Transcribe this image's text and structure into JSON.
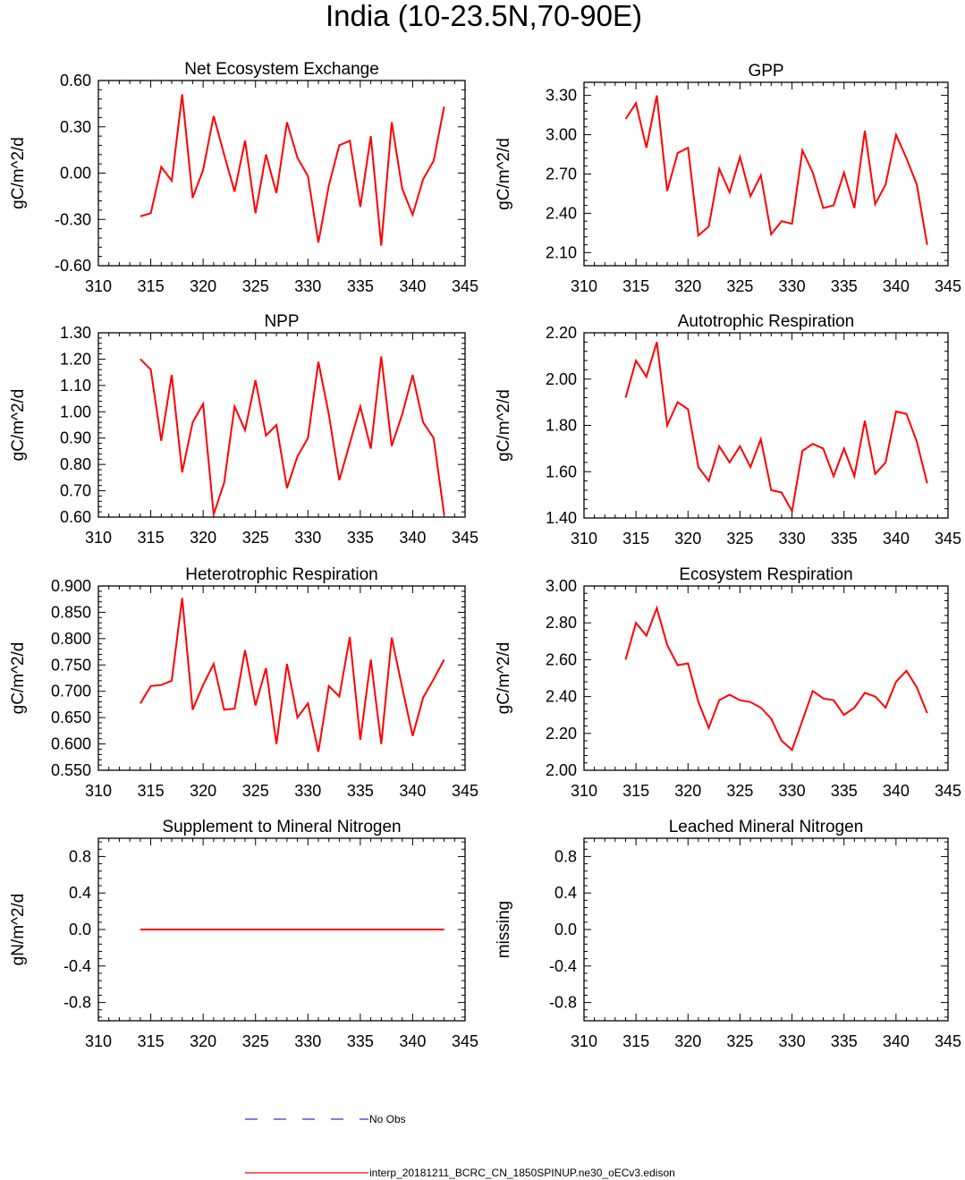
{
  "title": "India (10-23.5N,70-90E)",
  "colors": {
    "model": "#ff0000",
    "obs": "#3333cc",
    "axis": "#000000"
  },
  "legend": {
    "obs_label": "No Obs",
    "model_label": "interp_20181211_BCRC_CN_1850SPINUP.ne30_oECv3.edison"
  },
  "chart_data": [
    {
      "type": "line",
      "title": "Net Ecosystem Exchange",
      "ylabel": "gC/m^2/d",
      "xlim": [
        310,
        345
      ],
      "xticks": [
        "310",
        "315",
        "320",
        "325",
        "330",
        "335",
        "340",
        "345"
      ],
      "ylim": [
        -0.6,
        0.6
      ],
      "yticks": [
        "-0.60",
        "-0.30",
        "0.00",
        "0.30",
        "0.60"
      ],
      "x": [
        314,
        315,
        316,
        317,
        318,
        319,
        320,
        321,
        322,
        323,
        324,
        325,
        326,
        327,
        328,
        329,
        330,
        331,
        332,
        333,
        334,
        335,
        336,
        337,
        338,
        339,
        340,
        341,
        342,
        343
      ],
      "series": [
        {
          "name": "model",
          "values": [
            -0.28,
            -0.26,
            0.04,
            -0.05,
            0.51,
            -0.16,
            0.02,
            0.37,
            0.12,
            -0.12,
            0.21,
            -0.26,
            0.12,
            -0.13,
            0.33,
            0.1,
            -0.02,
            -0.45,
            -0.08,
            0.18,
            0.21,
            -0.22,
            0.24,
            -0.47,
            0.33,
            -0.1,
            -0.27,
            -0.04,
            0.08,
            0.43
          ]
        }
      ]
    },
    {
      "type": "line",
      "title": "GPP",
      "ylabel": "gC/m^2/d",
      "xlim": [
        310,
        345
      ],
      "xticks": [
        "310",
        "315",
        "320",
        "325",
        "330",
        "335",
        "340",
        "345"
      ],
      "ylim": [
        2.0,
        3.4
      ],
      "yticks": [
        "2.10",
        "2.40",
        "2.70",
        "3.00",
        "3.30"
      ],
      "x": [
        314,
        315,
        316,
        317,
        318,
        319,
        320,
        321,
        322,
        323,
        324,
        325,
        326,
        327,
        328,
        329,
        330,
        331,
        332,
        333,
        334,
        335,
        336,
        337,
        338,
        339,
        340,
        341,
        342,
        343
      ],
      "series": [
        {
          "name": "model",
          "values": [
            3.12,
            3.24,
            2.9,
            3.3,
            2.57,
            2.86,
            2.9,
            2.23,
            2.3,
            2.74,
            2.56,
            2.83,
            2.53,
            2.69,
            2.24,
            2.34,
            2.32,
            2.88,
            2.71,
            2.44,
            2.46,
            2.71,
            2.44,
            3.03,
            2.47,
            2.62,
            3.0,
            2.82,
            2.62,
            2.16
          ]
        }
      ]
    },
    {
      "type": "line",
      "title": "NPP",
      "ylabel": "gC/m^2/d",
      "xlim": [
        310,
        345
      ],
      "xticks": [
        "310",
        "315",
        "320",
        "325",
        "330",
        "335",
        "340",
        "345"
      ],
      "ylim": [
        0.6,
        1.3
      ],
      "yticks": [
        "0.60",
        "0.70",
        "0.80",
        "0.90",
        "1.00",
        "1.10",
        "1.20",
        "1.30"
      ],
      "x": [
        314,
        315,
        316,
        317,
        318,
        319,
        320,
        321,
        322,
        323,
        324,
        325,
        326,
        327,
        328,
        329,
        330,
        331,
        332,
        333,
        334,
        335,
        336,
        337,
        338,
        339,
        340,
        341,
        342,
        343
      ],
      "series": [
        {
          "name": "model",
          "values": [
            1.2,
            1.16,
            0.89,
            1.14,
            0.77,
            0.96,
            1.03,
            0.61,
            0.73,
            1.02,
            0.93,
            1.12,
            0.91,
            0.95,
            0.71,
            0.83,
            0.9,
            1.19,
            0.99,
            0.74,
            0.88,
            1.02,
            0.86,
            1.21,
            0.87,
            0.99,
            1.14,
            0.96,
            0.9,
            0.61
          ]
        }
      ]
    },
    {
      "type": "line",
      "title": "Autotrophic Respiration",
      "ylabel": "gC/m^2/d",
      "xlim": [
        310,
        345
      ],
      "xticks": [
        "310",
        "315",
        "320",
        "325",
        "330",
        "335",
        "340",
        "345"
      ],
      "ylim": [
        1.4,
        2.2
      ],
      "yticks": [
        "1.40",
        "1.60",
        "1.80",
        "2.00",
        "2.20"
      ],
      "x": [
        314,
        315,
        316,
        317,
        318,
        319,
        320,
        321,
        322,
        323,
        324,
        325,
        326,
        327,
        328,
        329,
        330,
        331,
        332,
        333,
        334,
        335,
        336,
        337,
        338,
        339,
        340,
        341,
        342,
        343
      ],
      "series": [
        {
          "name": "model",
          "values": [
            1.92,
            2.08,
            2.01,
            2.16,
            1.8,
            1.9,
            1.87,
            1.62,
            1.56,
            1.71,
            1.64,
            1.71,
            1.62,
            1.74,
            1.52,
            1.51,
            1.43,
            1.69,
            1.72,
            1.7,
            1.58,
            1.7,
            1.58,
            1.82,
            1.59,
            1.64,
            1.86,
            1.85,
            1.73,
            1.55
          ]
        }
      ]
    },
    {
      "type": "line",
      "title": "Heterotrophic Respiration",
      "ylabel": "gC/m^2/d",
      "xlim": [
        310,
        345
      ],
      "xticks": [
        "310",
        "315",
        "320",
        "325",
        "330",
        "335",
        "340",
        "345"
      ],
      "ylim": [
        0.55,
        0.9
      ],
      "yticks": [
        "0.550",
        "0.600",
        "0.650",
        "0.700",
        "0.750",
        "0.800",
        "0.850",
        "0.900"
      ],
      "x": [
        314,
        315,
        316,
        317,
        318,
        319,
        320,
        321,
        322,
        323,
        324,
        325,
        326,
        327,
        328,
        329,
        330,
        331,
        332,
        333,
        334,
        335,
        336,
        337,
        338,
        339,
        340,
        341,
        342,
        343
      ],
      "series": [
        {
          "name": "model",
          "values": [
            0.677,
            0.71,
            0.712,
            0.72,
            0.877,
            0.665,
            0.712,
            0.752,
            0.665,
            0.667,
            0.778,
            0.673,
            0.744,
            0.6,
            0.752,
            0.65,
            0.677,
            0.585,
            0.71,
            0.69,
            0.803,
            0.608,
            0.76,
            0.6,
            0.802,
            0.707,
            0.615,
            0.688,
            0.723,
            0.76
          ]
        }
      ]
    },
    {
      "type": "line",
      "title": "Ecosystem Respiration",
      "ylabel": "gC/m^2/d",
      "xlim": [
        310,
        345
      ],
      "xticks": [
        "310",
        "315",
        "320",
        "325",
        "330",
        "335",
        "340",
        "345"
      ],
      "ylim": [
        2.0,
        3.0
      ],
      "yticks": [
        "2.00",
        "2.20",
        "2.40",
        "2.60",
        "2.80",
        "3.00"
      ],
      "x": [
        314,
        315,
        316,
        317,
        318,
        319,
        320,
        321,
        322,
        323,
        324,
        325,
        326,
        327,
        328,
        329,
        330,
        331,
        332,
        333,
        334,
        335,
        336,
        337,
        338,
        339,
        340,
        341,
        342,
        343
      ],
      "series": [
        {
          "name": "model",
          "values": [
            2.6,
            2.8,
            2.73,
            2.88,
            2.68,
            2.57,
            2.58,
            2.37,
            2.23,
            2.38,
            2.41,
            2.38,
            2.37,
            2.34,
            2.28,
            2.16,
            2.11,
            2.27,
            2.43,
            2.39,
            2.38,
            2.3,
            2.34,
            2.42,
            2.4,
            2.34,
            2.48,
            2.54,
            2.45,
            2.31
          ]
        }
      ]
    },
    {
      "type": "line",
      "title": "Supplement to Mineral Nitrogen",
      "ylabel": "gN/m^2/d",
      "xlim": [
        310,
        345
      ],
      "xticks": [
        "310",
        "315",
        "320",
        "325",
        "330",
        "335",
        "340",
        "345"
      ],
      "ylim": [
        -1.0,
        1.0
      ],
      "yticks": [
        "-0.8",
        "-0.4",
        "0.0",
        "0.4",
        "0.8"
      ],
      "x": [
        314,
        315,
        316,
        317,
        318,
        319,
        320,
        321,
        322,
        323,
        324,
        325,
        326,
        327,
        328,
        329,
        330,
        331,
        332,
        333,
        334,
        335,
        336,
        337,
        338,
        339,
        340,
        341,
        342,
        343
      ],
      "series": [
        {
          "name": "model",
          "values": [
            0,
            0,
            0,
            0,
            0,
            0,
            0,
            0,
            0,
            0,
            0,
            0,
            0,
            0,
            0,
            0,
            0,
            0,
            0,
            0,
            0,
            0,
            0,
            0,
            0,
            0,
            0,
            0,
            0,
            0
          ]
        }
      ]
    },
    {
      "type": "line",
      "title": "Leached Mineral Nitrogen",
      "ylabel": "missing",
      "xlim": [
        310,
        345
      ],
      "xticks": [
        "310",
        "315",
        "320",
        "325",
        "330",
        "335",
        "340",
        "345"
      ],
      "ylim": [
        -1.0,
        1.0
      ],
      "yticks": [
        "-0.8",
        "-0.4",
        "0.0",
        "0.4",
        "0.8"
      ],
      "x": [],
      "series": []
    }
  ]
}
